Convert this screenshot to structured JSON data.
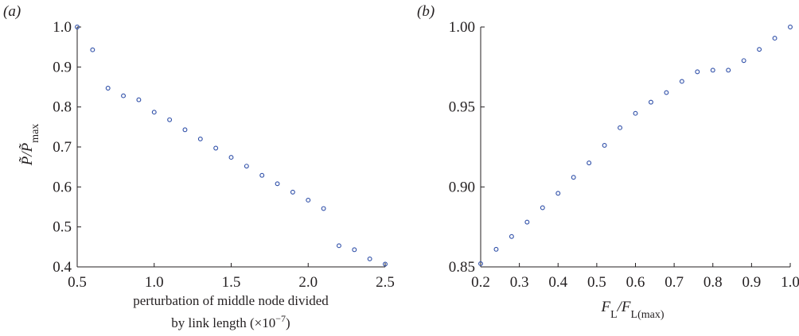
{
  "colors": {
    "marker": "#2f4fa8",
    "axis": "#231f20"
  },
  "chart_data": [
    {
      "type": "scatter",
      "panel_label": "(a)",
      "xlabel_line1": "perturbation of middle node divided",
      "xlabel_line2": "by link length (×10",
      "xlabel_exp": "−7",
      "xlabel_close": ")",
      "ylabel": "P̃/P̃max",
      "ylabel_main": "P̃/P̃",
      "ylabel_sub": "max",
      "xlim": [
        0.5,
        2.5
      ],
      "ylim": [
        0.4,
        1.0
      ],
      "xticks": [
        "0.5",
        "1.0",
        "1.5",
        "2.0",
        "2.5"
      ],
      "yticks": [
        "0.4",
        "0.5",
        "0.6",
        "0.7",
        "0.8",
        "0.9",
        "1.0"
      ],
      "x": [
        0.5,
        0.6,
        0.7,
        0.8,
        0.9,
        1.0,
        1.1,
        1.2,
        1.3,
        1.4,
        1.5,
        1.6,
        1.7,
        1.8,
        1.9,
        2.0,
        2.1,
        2.2,
        2.3,
        2.4,
        2.5
      ],
      "y": [
        1.0,
        0.943,
        0.847,
        0.828,
        0.818,
        0.787,
        0.768,
        0.743,
        0.72,
        0.697,
        0.674,
        0.652,
        0.629,
        0.608,
        0.587,
        0.567,
        0.546,
        0.453,
        0.443,
        0.42,
        0.407
      ]
    },
    {
      "type": "scatter",
      "panel_label": "(b)",
      "xlabel_main": "F",
      "xlabel_sub1": "L",
      "xlabel_mid": "/F",
      "xlabel_sub2": "L(max)",
      "ylabel": "",
      "xlim": [
        0.2,
        1.0
      ],
      "ylim": [
        0.85,
        1.0
      ],
      "xticks": [
        "0.2",
        "0.3",
        "0.4",
        "0.5",
        "0.6",
        "0.7",
        "0.8",
        "0.9",
        "1.0"
      ],
      "yticks": [
        "0.85",
        "0.90",
        "0.95",
        "1.00"
      ],
      "x": [
        0.2,
        0.24,
        0.28,
        0.32,
        0.36,
        0.4,
        0.44,
        0.48,
        0.52,
        0.56,
        0.6,
        0.64,
        0.68,
        0.72,
        0.76,
        0.8,
        0.84,
        0.88,
        0.92,
        0.96,
        1.0
      ],
      "y": [
        0.852,
        0.861,
        0.869,
        0.878,
        0.887,
        0.896,
        0.906,
        0.915,
        0.926,
        0.937,
        0.946,
        0.953,
        0.959,
        0.966,
        0.972,
        0.973,
        0.973,
        0.979,
        0.986,
        0.993,
        1.0
      ]
    }
  ]
}
